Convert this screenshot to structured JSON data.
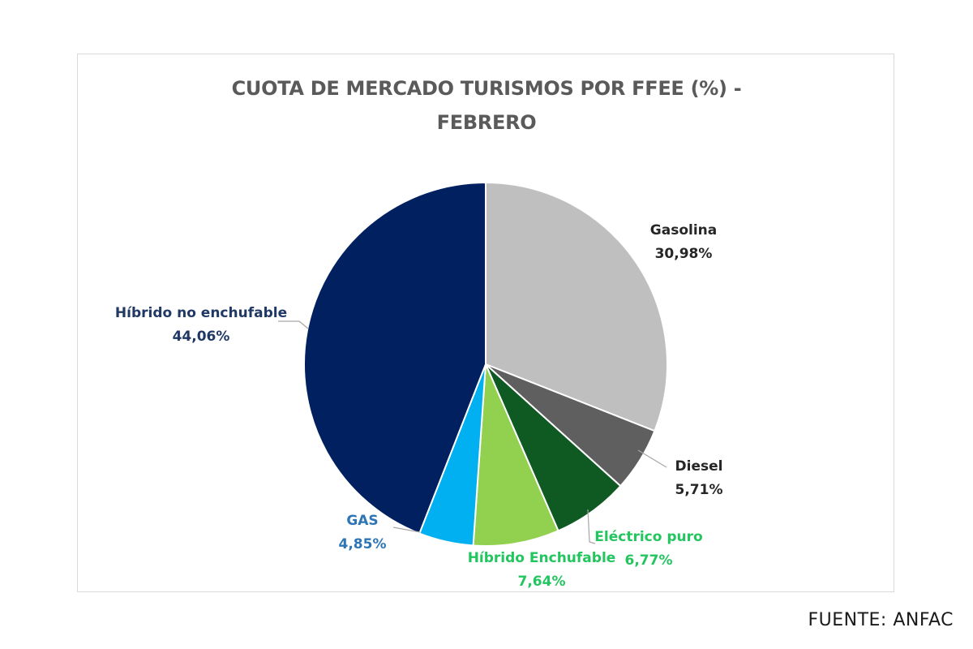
{
  "chart_data": {
    "type": "pie",
    "title_lines": [
      "CUOTA DE MERCADO TURISMOS POR FFEE (%)  -",
      "FEBRERO"
    ],
    "unit": "%",
    "slices": [
      {
        "name": "Gasolina",
        "value": 30.98,
        "display": "30,98%",
        "color": "#bfbfbf",
        "label_color": "#262626"
      },
      {
        "name": "Diesel",
        "value": 5.71,
        "display": "5,71%",
        "color": "#5f5f5f",
        "label_color": "#262626"
      },
      {
        "name": "Eléctrico puro",
        "value": 6.77,
        "display": "6,77%",
        "color": "#0f5a22",
        "label_color": "#22c55e"
      },
      {
        "name": "Híbrido Enchufable",
        "value": 7.64,
        "display": "7,64%",
        "color": "#92d050",
        "label_color": "#22c55e"
      },
      {
        "name": "GAS",
        "value": 4.85,
        "display": "4,85%",
        "color": "#00b0f0",
        "label_color": "#2e75b6"
      },
      {
        "name": "Híbrido no enchufable",
        "value": 44.06,
        "display": "44,06%",
        "color": "#002060",
        "label_color": "#1f3864"
      }
    ]
  },
  "source": "FUENTE: ANFAC"
}
